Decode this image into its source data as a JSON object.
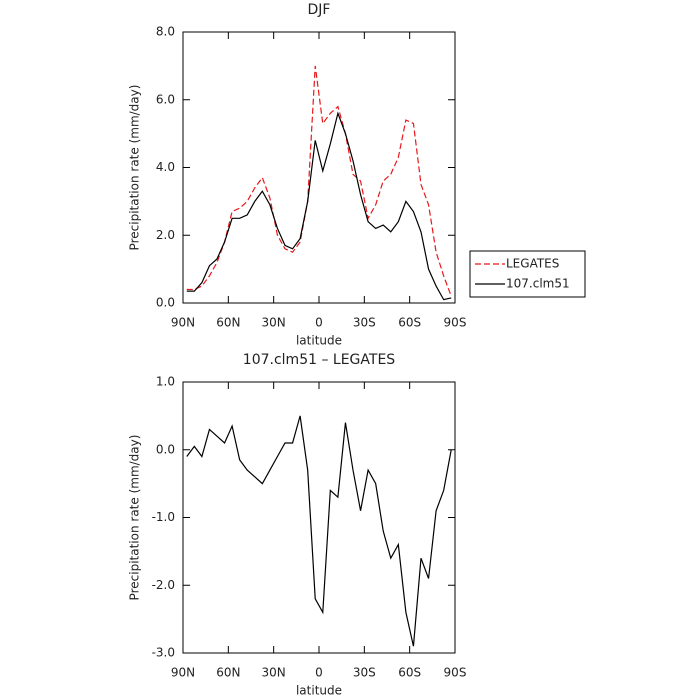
{
  "chart_data": [
    {
      "type": "line",
      "title": "DJF",
      "xlabel": "latitude",
      "ylabel": "Precipitation rate (mm/day)",
      "x": [
        87.5,
        82.5,
        77.5,
        72.5,
        67.5,
        62.5,
        57.5,
        52.5,
        47.5,
        42.5,
        37.5,
        32.5,
        27.5,
        22.5,
        17.5,
        12.5,
        7.5,
        2.5,
        -2.5,
        -7.5,
        -12.5,
        -17.5,
        -22.5,
        -27.5,
        -32.5,
        -37.5,
        -42.5,
        -47.5,
        -52.5,
        -57.5,
        -62.5,
        -67.5,
        -72.5,
        -77.5,
        -82.5,
        -87.5
      ],
      "series": [
        {
          "name": "LEGATES",
          "color": "#e8171b",
          "dashed": true,
          "values": [
            0.4,
            0.4,
            0.5,
            0.8,
            1.2,
            1.8,
            2.7,
            2.8,
            3.0,
            3.4,
            3.7,
            3.1,
            2.0,
            1.6,
            1.5,
            1.8,
            3.0,
            7.0,
            5.3,
            5.6,
            5.8,
            5.0,
            3.8,
            3.6,
            2.5,
            2.9,
            3.6,
            3.8,
            4.3,
            5.4,
            5.3,
            3.5,
            2.9,
            1.5,
            0.8,
            0.2
          ]
        },
        {
          "name": "107.clm51",
          "color": "#000000",
          "dashed": false,
          "values": [
            0.35,
            0.35,
            0.6,
            1.1,
            1.3,
            1.8,
            2.5,
            2.5,
            2.6,
            3.0,
            3.3,
            2.9,
            2.2,
            1.7,
            1.6,
            1.9,
            3.0,
            4.8,
            3.9,
            4.7,
            5.6,
            5.0,
            4.2,
            3.2,
            2.4,
            2.2,
            2.3,
            2.1,
            2.4,
            3.0,
            2.7,
            2.1,
            1.0,
            0.5,
            0.1,
            0.15
          ]
        }
      ],
      "xlim": [
        90,
        -90
      ],
      "xticks": [
        {
          "value": 90,
          "label": "90N"
        },
        {
          "value": 60,
          "label": "60N"
        },
        {
          "value": 30,
          "label": "30N"
        },
        0,
        {
          "value": -30,
          "label": "30S"
        },
        {
          "value": -60,
          "label": "60S"
        },
        {
          "value": -90,
          "label": "90S"
        }
      ],
      "ylim": [
        0,
        8
      ],
      "yticks": [
        {
          "value": 0,
          "label": "0.0"
        },
        {
          "value": 2,
          "label": "2.0"
        },
        {
          "value": 4,
          "label": "4.0"
        },
        {
          "value": 6,
          "label": "6.0"
        },
        {
          "value": 8,
          "label": "8.0"
        }
      ],
      "legend": "right"
    },
    {
      "type": "line",
      "title": "107.clm51 – LEGATES",
      "xlabel": "latitude",
      "ylabel": "Precipitation rate (mm/day)",
      "x": [
        87.5,
        82.5,
        77.5,
        72.5,
        67.5,
        62.5,
        57.5,
        52.5,
        47.5,
        42.5,
        37.5,
        32.5,
        27.5,
        22.5,
        17.5,
        12.5,
        7.5,
        2.5,
        -2.5,
        -7.5,
        -12.5,
        -17.5,
        -22.5,
        -27.5,
        -32.5,
        -37.5,
        -42.5,
        -47.5,
        -52.5,
        -57.5,
        -62.5,
        -67.5,
        -72.5,
        -77.5,
        -82.5,
        -87.5
      ],
      "values": [
        -0.1,
        0.05,
        -0.1,
        0.3,
        0.2,
        0.1,
        0.35,
        -0.15,
        -0.3,
        -0.4,
        -0.5,
        -0.3,
        -0.1,
        0.1,
        0.1,
        0.5,
        -0.3,
        -2.2,
        -2.4,
        -0.6,
        -0.7,
        0.4,
        -0.3,
        -0.9,
        -0.3,
        -0.5,
        -1.2,
        -1.6,
        -1.4,
        -2.4,
        -2.9,
        -1.6,
        -1.9,
        -0.9,
        -0.6,
        0.0
      ],
      "color": "#000000",
      "xlim": [
        90,
        -90
      ],
      "xticks": [
        {
          "value": 90,
          "label": "90N"
        },
        {
          "value": 60,
          "label": "60N"
        },
        {
          "value": 30,
          "label": "30N"
        },
        0,
        {
          "value": -30,
          "label": "30S"
        },
        {
          "value": -60,
          "label": "60S"
        },
        {
          "value": -90,
          "label": "90S"
        }
      ],
      "ylim": [
        -3,
        1
      ],
      "yticks": [
        {
          "value": -3,
          "label": "-3.0"
        },
        {
          "value": -2,
          "label": "-2.0"
        },
        {
          "value": -1,
          "label": "-1.0"
        },
        {
          "value": 0,
          "label": "0.0"
        },
        {
          "value": 1,
          "label": "1.0"
        }
      ]
    }
  ]
}
